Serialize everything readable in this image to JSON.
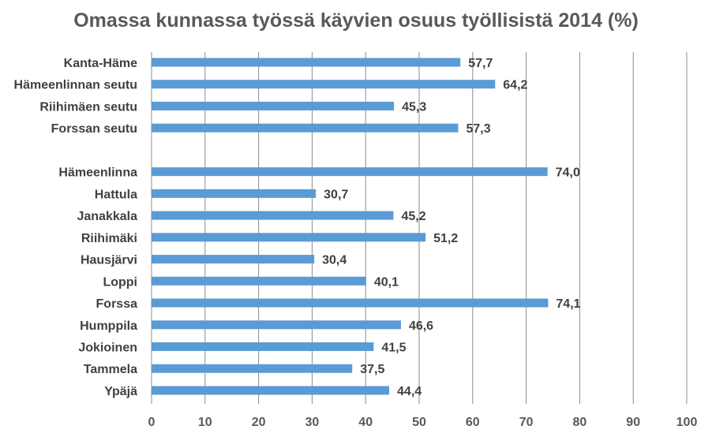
{
  "chart_data": {
    "type": "bar",
    "orientation": "horizontal",
    "title": "Omassa kunnassa työssä käyvien osuus työllisistä 2014 (%)",
    "xlabel": "",
    "ylabel": "",
    "xlim": [
      0,
      100
    ],
    "xticks": [
      "0",
      "10",
      "20",
      "30",
      "40",
      "50",
      "60",
      "70",
      "80",
      "90",
      "100"
    ],
    "grid": "vertical",
    "legend": "none",
    "bar_color": "#5B9BD5",
    "categories": [
      "Kanta-Häme",
      "Hämeenlinnan seutu",
      "Riihimäen seutu",
      "Forssan seutu",
      "",
      "Hämeenlinna",
      "Hattula",
      "Janakkala",
      "Riihimäki",
      "Hausjärvi",
      "Loppi",
      "Forssa",
      "Humppila",
      "Jokioinen",
      "Tammela",
      "Ypäjä"
    ],
    "values": [
      57.7,
      64.2,
      45.3,
      57.3,
      null,
      74.0,
      30.7,
      45.2,
      51.2,
      30.4,
      40.1,
      74.1,
      46.6,
      41.5,
      37.5,
      44.4
    ],
    "value_labels": [
      "57,7",
      "64,2",
      "45,3",
      "57,3",
      "",
      "74,0",
      "30,7",
      "45,2",
      "51,2",
      "30,4",
      "40,1",
      "74,1",
      "46,6",
      "41,5",
      "37,5",
      "44,4"
    ]
  }
}
